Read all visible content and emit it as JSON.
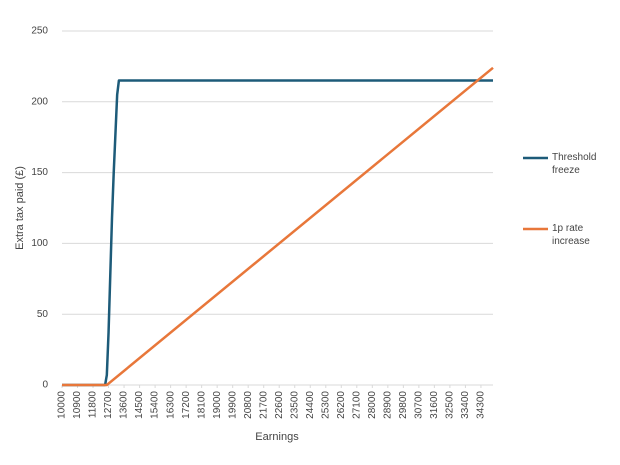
{
  "chart_data": {
    "type": "line",
    "xlabel": "Earnings",
    "ylabel": "Extra tax paid (£)",
    "xlim": [
      10000,
      35000
    ],
    "xticks": [
      10000,
      10900,
      11800,
      12700,
      13600,
      14500,
      15400,
      16300,
      17200,
      18100,
      19000,
      19900,
      20800,
      21700,
      22600,
      23500,
      24400,
      25300,
      26200,
      27100,
      28000,
      28900,
      29800,
      30700,
      31600,
      32500,
      33400,
      34300
    ],
    "ylim": [
      0,
      250
    ],
    "yticks": [
      0,
      50,
      100,
      150,
      200,
      250
    ],
    "grid": true,
    "legend": "right",
    "series": [
      {
        "name": "Threshold freeze",
        "color": "#1d5b79",
        "x": [
          10000,
          12500,
          12600,
          12700,
          12900,
          13000,
          13200,
          13300,
          35000
        ],
        "values": [
          0,
          0,
          7,
          37,
          118,
          150,
          205,
          215,
          215
        ]
      },
      {
        "name": "1p rate increase",
        "color": "#e8773a",
        "x": [
          10000,
          12600,
          35000
        ],
        "values": [
          0,
          0,
          224
        ]
      }
    ]
  }
}
